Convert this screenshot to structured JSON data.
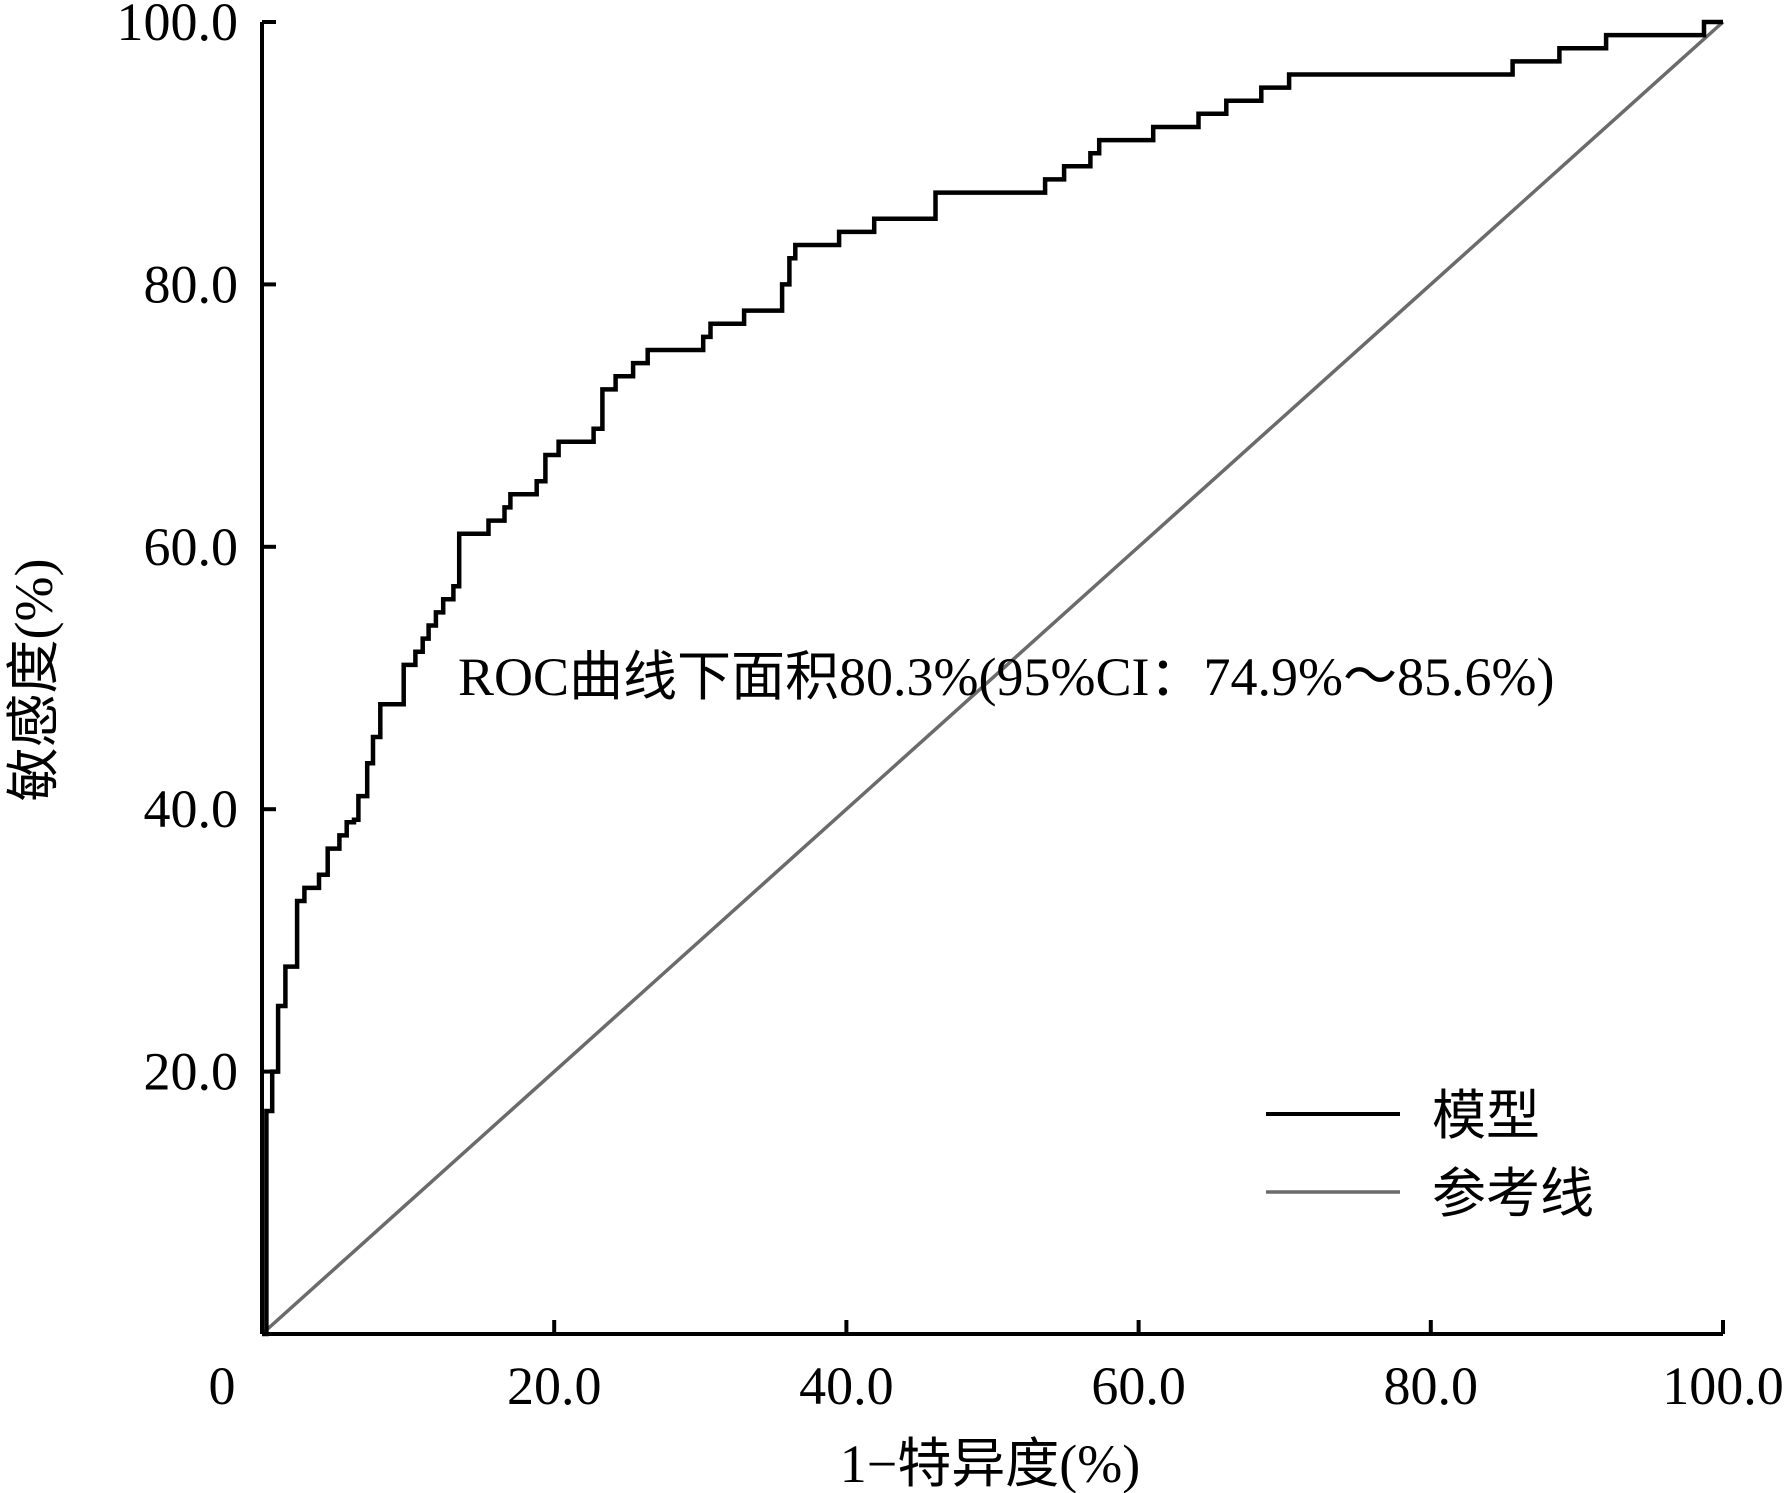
{
  "chart_data": {
    "type": "line",
    "xlabel": "1−特异度(%)",
    "ylabel": "敏感度(%)",
    "xlim": [
      0,
      100
    ],
    "ylim": [
      0,
      100
    ],
    "x_ticks": [
      "0",
      "20.0",
      "40.0",
      "60.0",
      "80.0",
      "100.0"
    ],
    "y_ticks": [
      "20.0",
      "40.0",
      "60.0",
      "80.0",
      "100.0"
    ],
    "x_tick_values": [
      0,
      20,
      40,
      60,
      80,
      100
    ],
    "y_tick_values": [
      20,
      40,
      60,
      80,
      100
    ],
    "annotation": "ROC曲线下面积80.3%(95%CI：74.9%～85.6%)",
    "grid": false,
    "legend_position": "bottom-right",
    "series": [
      {
        "name": "模型",
        "color": "#000000",
        "x": [
          0,
          0.3,
          0.3,
          0.7,
          0.7,
          1.1,
          1.1,
          1.6,
          1.6,
          2.4,
          2.4,
          2.9,
          2.9,
          3.9,
          3.9,
          4.5,
          4.5,
          5.3,
          5.3,
          5.8,
          5.8,
          6.3,
          6.3,
          6.6,
          6.6,
          7.2,
          7.2,
          7.6,
          7.6,
          8.1,
          8.1,
          9.7,
          9.7,
          10.5,
          10.5,
          11.0,
          11.0,
          11.4,
          11.4,
          11.9,
          11.9,
          12.4,
          12.4,
          13.1,
          13.1,
          13.5,
          13.5,
          15.5,
          15.5,
          16.6,
          16.6,
          17.0,
          17.0,
          18.8,
          18.8,
          19.4,
          19.4,
          20.3,
          20.3,
          22.7,
          22.7,
          23.3,
          23.3,
          24.2,
          24.2,
          25.4,
          25.4,
          26.4,
          26.4,
          30.2,
          30.2,
          30.7,
          30.7,
          33.0,
          33.0,
          35.6,
          35.6,
          36.1,
          36.1,
          36.5,
          36.5,
          39.5,
          39.5,
          41.9,
          41.9,
          46.1,
          46.1,
          53.6,
          53.6,
          54.9,
          54.9,
          56.7,
          56.7,
          57.3,
          57.3,
          61.0,
          61.0,
          64.1,
          64.1,
          66.0,
          66.0,
          68.4,
          68.4,
          70.3,
          70.3,
          85.6,
          85.6,
          88.8,
          88.8,
          92.0,
          92.0,
          98.7,
          98.7,
          100
        ],
        "y": [
          0,
          0,
          17,
          17,
          20,
          20,
          25,
          25,
          28,
          28,
          33,
          33,
          34,
          34,
          35,
          35,
          37,
          37,
          38,
          38,
          39,
          39,
          39.2,
          39.2,
          41,
          41,
          43.5,
          43.5,
          45.5,
          45.5,
          48,
          48,
          51,
          51,
          52,
          52,
          53,
          53,
          54,
          54,
          55,
          55,
          56,
          56,
          57,
          57,
          61,
          61,
          62,
          62,
          63,
          63,
          64,
          64,
          65,
          65,
          67,
          67,
          68,
          68,
          69,
          69,
          72,
          72,
          73,
          73,
          74,
          74,
          75,
          75,
          76,
          76,
          77,
          77,
          78,
          78,
          80,
          80,
          82,
          82,
          83,
          83,
          84,
          84,
          85,
          85,
          87,
          87,
          88,
          88,
          89,
          89,
          90,
          90,
          91,
          91,
          92,
          92,
          93,
          93,
          94,
          94,
          95,
          95,
          96,
          96,
          97,
          97,
          98,
          98,
          99,
          99,
          100,
          100
        ]
      },
      {
        "name": "参考线",
        "color": "#6b6b6b",
        "x": [
          0,
          100
        ],
        "y": [
          0,
          100
        ]
      }
    ]
  }
}
